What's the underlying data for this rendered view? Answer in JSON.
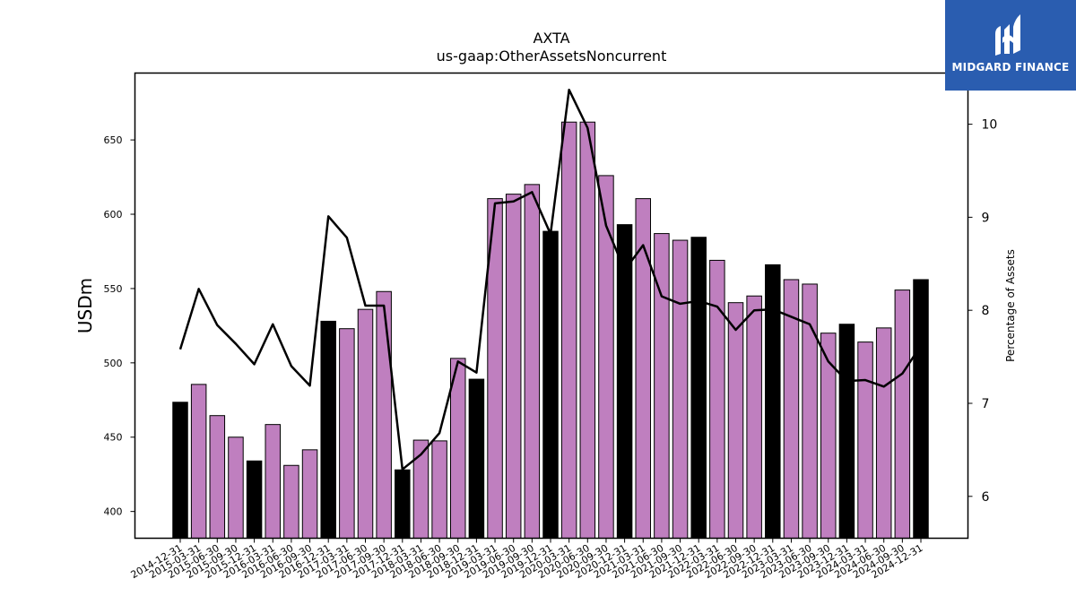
{
  "chart_data": {
    "type": "bar",
    "title": "AXTA",
    "subtitle": "us-gaap:OtherAssetsNoncurrent",
    "ylabel": "USDm",
    "y2label": "Percentage of Assets",
    "ylim": [
      382,
      695
    ],
    "y2lim": [
      5.55,
      10.55
    ],
    "yticks": [
      400,
      450,
      500,
      550,
      600,
      650
    ],
    "y2ticks": [
      6,
      7,
      8,
      9,
      10
    ],
    "grid": false,
    "colors": {
      "bar": "#bf7fbf",
      "bar_highlight": "#000000",
      "line": "#000000"
    },
    "categories": [
      "2014-12-31",
      "2015-03-31",
      "2015-06-30",
      "2015-09-30",
      "2015-12-31",
      "2016-03-31",
      "2016-06-30",
      "2016-09-30",
      "2016-12-31",
      "2017-03-31",
      "2017-06-30",
      "2017-09-30",
      "2017-12-31",
      "2018-03-31",
      "2018-06-30",
      "2018-09-30",
      "2018-12-31",
      "2019-03-31",
      "2019-06-30",
      "2019-09-30",
      "2019-12-31",
      "2020-03-31",
      "2020-06-30",
      "2020-09-30",
      "2020-12-31",
      "2021-03-31",
      "2021-06-30",
      "2021-09-30",
      "2021-12-31",
      "2022-03-31",
      "2022-06-30",
      "2022-09-30",
      "2022-12-31",
      "2023-03-31",
      "2023-06-30",
      "2023-09-30",
      "2023-12-31",
      "2024-03-31",
      "2024-06-30",
      "2024-09-30",
      "2024-12-31"
    ],
    "values": [
      473.5,
      485.5,
      464.5,
      450,
      434,
      458.5,
      431,
      441.5,
      528,
      523,
      536,
      548,
      428,
      448,
      447.5,
      503,
      489,
      610.5,
      613.5,
      620,
      588.5,
      662,
      662,
      626,
      593,
      610.5,
      587,
      582.5,
      584.5,
      569,
      540.5,
      545,
      566,
      556,
      553,
      520,
      526,
      514,
      523.5,
      549,
      556
    ],
    "highlight": [
      true,
      false,
      false,
      false,
      true,
      false,
      false,
      false,
      true,
      false,
      false,
      false,
      true,
      false,
      false,
      false,
      true,
      false,
      false,
      false,
      true,
      false,
      false,
      false,
      true,
      false,
      false,
      false,
      true,
      false,
      false,
      false,
      true,
      false,
      false,
      false,
      true,
      false,
      false,
      false,
      true
    ],
    "percent_of_assets": [
      7.58,
      8.23,
      7.84,
      7.64,
      7.42,
      7.85,
      7.4,
      7.19,
      9.01,
      8.78,
      8.05,
      8.05,
      6.29,
      6.45,
      6.68,
      7.45,
      7.33,
      9.15,
      9.17,
      9.27,
      8.82,
      10.37,
      9.96,
      8.91,
      8.43,
      8.7,
      8.15,
      8.07,
      8.1,
      8.04,
      7.79,
      8.0,
      8.01,
      7.93,
      7.85,
      7.45,
      7.24,
      7.25,
      7.18,
      7.32,
      7.62
    ]
  },
  "logo": {
    "text": "MIDGARD FINANCE"
  }
}
